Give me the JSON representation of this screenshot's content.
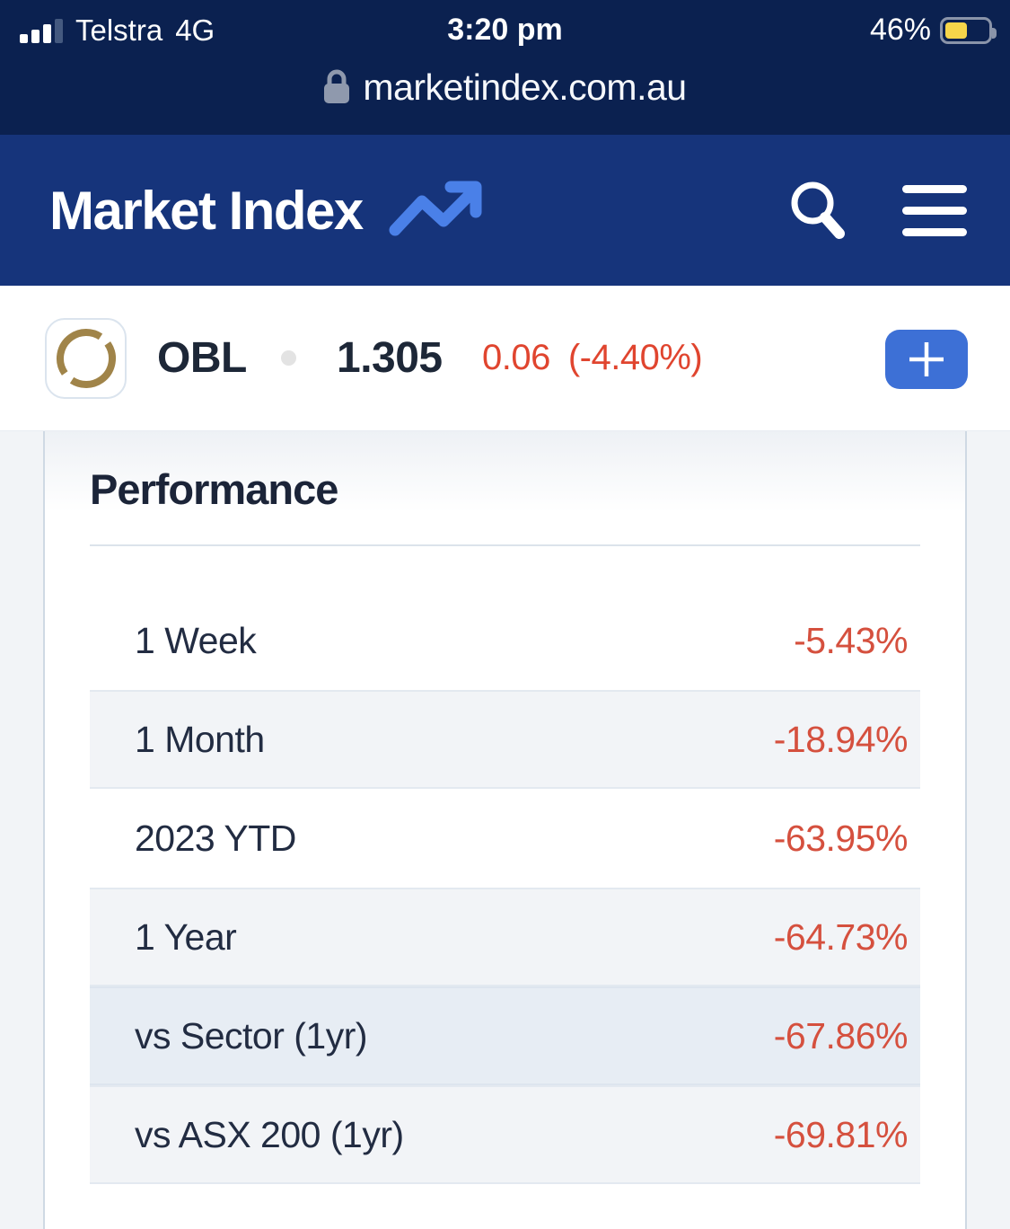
{
  "status_bar": {
    "carrier": "Telstra",
    "network": "4G",
    "time": "3:20 pm",
    "battery_percent": "46%",
    "battery_fill_color": "#f6d54a"
  },
  "url_bar": {
    "domain": "marketindex.com.au",
    "lock_icon": "lock-icon"
  },
  "header": {
    "logo_text": "Market Index",
    "trend_icon": "trending-up-icon",
    "search_icon": "search-icon",
    "menu_icon": "hamburger-menu-icon"
  },
  "ticker": {
    "symbol": "OBL",
    "price": "1.305",
    "change": "0.06",
    "change_percent": "(-4.40%)",
    "add_button_label": "+",
    "logo_icon": "gold-ring-icon"
  },
  "performance": {
    "title": "Performance",
    "rows": [
      {
        "label": "1 Week",
        "value": "-5.43%",
        "shaded": false,
        "highlight": false
      },
      {
        "label": "1 Month",
        "value": "-18.94%",
        "shaded": true,
        "highlight": false
      },
      {
        "label": "2023 YTD",
        "value": "-63.95%",
        "shaded": false,
        "highlight": false
      },
      {
        "label": "1 Year",
        "value": "-64.73%",
        "shaded": true,
        "highlight": false
      },
      {
        "label": "vs Sector (1yr)",
        "value": "-67.86%",
        "shaded": false,
        "highlight": true
      },
      {
        "label": "vs ASX 200 (1yr)",
        "value": "-69.81%",
        "shaded": true,
        "highlight": false
      }
    ]
  },
  "colors": {
    "status_navy": "#0b2150",
    "header_navy": "#16347b",
    "accent_blue": "#4a80e8",
    "button_blue": "#3d70d6",
    "negative_red": "#d5503e",
    "ticker_red": "#e0452f",
    "gold_ring": "#a08449",
    "dark_text": "#1d2737",
    "shaded_row": "#f2f4f7",
    "highlight_row": "#e7edf4"
  }
}
